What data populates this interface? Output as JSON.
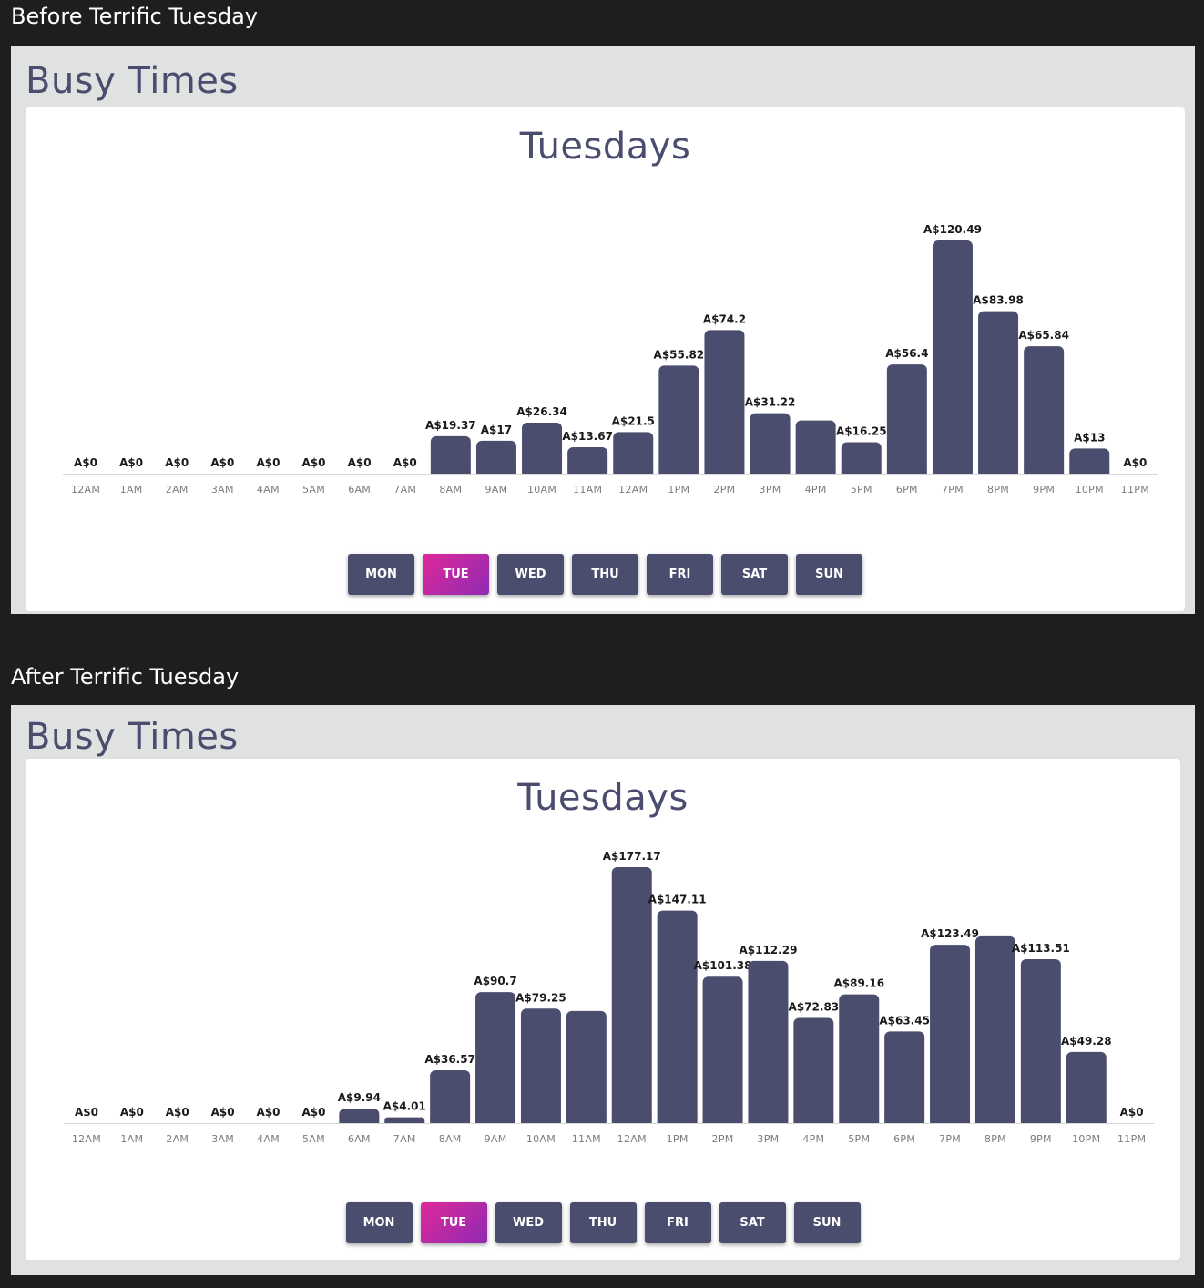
{
  "sections": [
    {
      "title": "Before Terrific Tuesday",
      "panel_heading": "Busy Times",
      "days": [
        "MON",
        "TUE",
        "WED",
        "THU",
        "FRI",
        "SAT",
        "SUN"
      ],
      "active_day": "TUE",
      "chart_data": {
        "type": "bar",
        "title": "Tuesdays",
        "xlabel": "",
        "ylabel": "",
        "categories": [
          "12AM",
          "1AM",
          "2AM",
          "3AM",
          "4AM",
          "5AM",
          "6AM",
          "7AM",
          "8AM",
          "9AM",
          "10AM",
          "11AM",
          "12AM",
          "1PM",
          "2PM",
          "3PM",
          "4PM",
          "5PM",
          "6PM",
          "7PM",
          "8PM",
          "9PM",
          "10PM",
          "11PM"
        ],
        "values": [
          0,
          0,
          0,
          0,
          0,
          0,
          0,
          0,
          19.37,
          17,
          26.34,
          13.67,
          21.5,
          55.82,
          74.2,
          31.22,
          27.5,
          16.25,
          56.4,
          120.49,
          83.98,
          65.84,
          13,
          0
        ],
        "labels": [
          "A$0",
          "A$0",
          "A$0",
          "A$0",
          "A$0",
          "A$0",
          "A$0",
          "A$0",
          "A$19.37",
          "A$17",
          "A$26.34",
          "A$13.67",
          "A$21.5",
          "A$55.82",
          "A$74.2",
          "A$31.22",
          "",
          "A$16.25",
          "A$56.4",
          "A$120.49",
          "A$83.98",
          "A$65.84",
          "A$13",
          "A$0"
        ],
        "grid": false,
        "legend": "none",
        "bar_color": "#4b4d6e"
      }
    },
    {
      "title": "After Terrific Tuesday",
      "panel_heading": "Busy Times",
      "days": [
        "MON",
        "TUE",
        "WED",
        "THU",
        "FRI",
        "SAT",
        "SUN"
      ],
      "active_day": "TUE",
      "chart_data": {
        "type": "bar",
        "title": "Tuesdays",
        "xlabel": "",
        "ylabel": "",
        "categories": [
          "12AM",
          "1AM",
          "2AM",
          "3AM",
          "4AM",
          "5AM",
          "6AM",
          "7AM",
          "8AM",
          "9AM",
          "10AM",
          "11AM",
          "12AM",
          "1PM",
          "2PM",
          "3PM",
          "4PM",
          "5PM",
          "6PM",
          "7PM",
          "8PM",
          "9PM",
          "10PM",
          "11PM"
        ],
        "values": [
          0,
          0,
          0,
          0,
          0,
          0,
          9.94,
          4.01,
          36.57,
          90.7,
          79.25,
          77.6,
          177.17,
          147.11,
          101.38,
          112.29,
          72.83,
          89.16,
          63.45,
          123.49,
          129.3,
          113.51,
          49.28,
          0
        ],
        "labels": [
          "A$0",
          "A$0",
          "A$0",
          "A$0",
          "A$0",
          "A$0",
          "A$9.94",
          "A$4.01",
          "A$36.57",
          "A$90.7",
          "A$79.25",
          "",
          "A$177.17",
          "A$147.11",
          "A$101.38",
          "A$112.29",
          "A$72.83",
          "A$89.16",
          "A$63.45",
          "A$123.49",
          "",
          "A$113.51",
          "A$49.28",
          "A$0"
        ],
        "grid": false,
        "legend": "none",
        "bar_color": "#4b4d6e"
      }
    }
  ],
  "colors": {
    "page_background": "#1e1e1e",
    "panel_background": "#e0e1e1",
    "card_background": "#ffffff",
    "bar": "#4b4d6e",
    "heading_text": "#4b4d6e",
    "button": "#4b4d6e",
    "active_button_gradient": [
      "#e0289a",
      "#8e2bb2"
    ]
  }
}
